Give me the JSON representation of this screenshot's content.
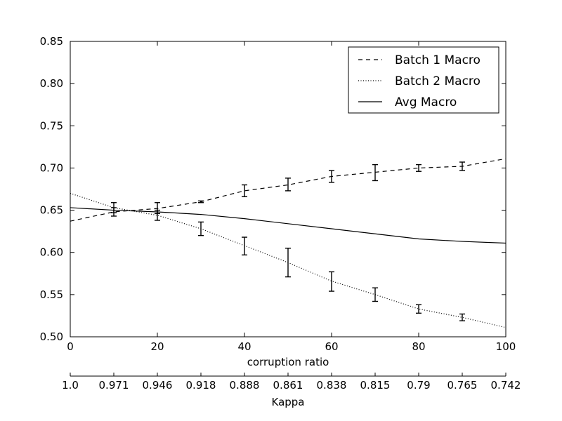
{
  "chart_data": {
    "type": "line",
    "xlabel": "corruption ratio",
    "x2label": "Kappa",
    "x2_ticklabels": [
      "1.0",
      "0.971",
      "0.946",
      "0.918",
      "0.888",
      "0.861",
      "0.838",
      "0.815",
      "0.79",
      "0.765",
      "0.742"
    ],
    "xlim": [
      0,
      100
    ],
    "ylim": [
      0.5,
      0.85
    ],
    "xticks": [
      0,
      20,
      40,
      60,
      80,
      100
    ],
    "yticks": [
      0.5,
      0.55,
      0.6,
      0.65,
      0.7,
      0.75,
      0.8,
      0.85
    ],
    "ytick_labels": [
      "0.50",
      "0.55",
      "0.60",
      "0.65",
      "0.70",
      "0.75",
      "0.80",
      "0.85"
    ],
    "legend_position": "top-right",
    "grid": false,
    "series": [
      {
        "name": "Batch 1 Macro",
        "style": "dashed",
        "x": [
          0,
          10,
          20,
          30,
          40,
          50,
          60,
          70,
          80,
          90,
          100
        ],
        "y": [
          0.637,
          0.648,
          0.652,
          0.66,
          0.673,
          0.68,
          0.69,
          0.695,
          0.7,
          0.702,
          0.711
        ],
        "error_x": [
          10,
          20,
          30,
          40,
          50,
          60,
          70,
          80,
          90
        ],
        "error_low": [
          0.643,
          0.646,
          0.659,
          0.666,
          0.673,
          0.683,
          0.685,
          0.696,
          0.697
        ],
        "error_high": [
          0.653,
          0.659,
          0.661,
          0.68,
          0.688,
          0.697,
          0.704,
          0.704,
          0.707
        ]
      },
      {
        "name": "Batch 2 Macro",
        "style": "dotted",
        "x": [
          0,
          10,
          20,
          30,
          40,
          50,
          60,
          70,
          80,
          90,
          100
        ],
        "y": [
          0.67,
          0.653,
          0.644,
          0.628,
          0.608,
          0.588,
          0.566,
          0.55,
          0.533,
          0.523,
          0.511
        ],
        "error_x": [
          10,
          20,
          30,
          40,
          50,
          60,
          70,
          80,
          90
        ],
        "error_low": [
          0.647,
          0.638,
          0.62,
          0.597,
          0.571,
          0.554,
          0.542,
          0.528,
          0.519
        ],
        "error_high": [
          0.659,
          0.65,
          0.636,
          0.618,
          0.605,
          0.577,
          0.558,
          0.538,
          0.527
        ]
      },
      {
        "name": "Avg Macro",
        "style": "solid",
        "x": [
          0,
          10,
          20,
          30,
          40,
          50,
          60,
          70,
          80,
          90,
          100
        ],
        "y": [
          0.653,
          0.65,
          0.648,
          0.645,
          0.64,
          0.634,
          0.628,
          0.622,
          0.616,
          0.613,
          0.611
        ]
      }
    ]
  }
}
